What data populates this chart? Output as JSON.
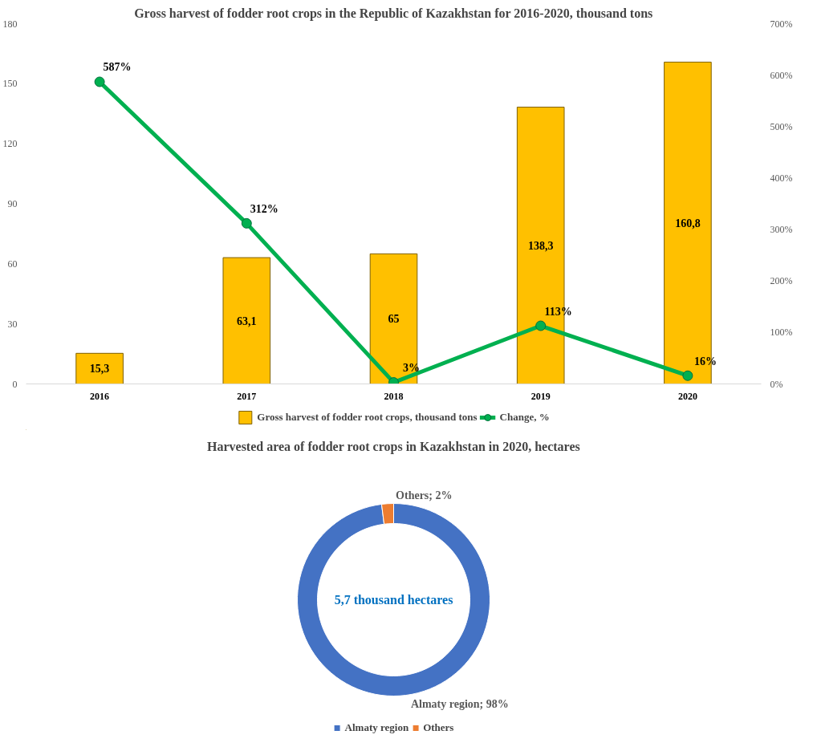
{
  "chart_data": [
    {
      "type": "bar",
      "title": "Gross harvest of fodder root crops in the Republic of Kazakhstan for 2016-2020, thousand tons",
      "categories": [
        "2016",
        "2017",
        "2018",
        "2019",
        "2020"
      ],
      "series": [
        {
          "type": "bar",
          "name": "Gross harvest of fodder root crops, thousand tons",
          "color": "#ffc000",
          "values": [
            15.3,
            63.1,
            65,
            138.3,
            160.8
          ],
          "value_labels": [
            "15,3",
            "63,1",
            "65",
            "138,3",
            "160,8"
          ]
        },
        {
          "type": "line",
          "name": "Change, %",
          "color": "#00b050",
          "axis": "y2",
          "marker": "circle",
          "values": [
            587,
            312,
            3,
            113,
            16
          ],
          "value_labels": [
            "587%",
            "312%",
            "3%",
            "113%",
            "16%"
          ]
        }
      ],
      "ylim": [
        0,
        180
      ],
      "yticks": [
        0,
        30,
        60,
        90,
        120,
        150,
        180
      ],
      "y2lim": [
        0,
        700
      ],
      "y2ticks": [
        {
          "value": 0,
          "label": "0%"
        },
        {
          "value": 100,
          "label": "100%"
        },
        {
          "value": 200,
          "label": "200%"
        },
        {
          "value": 300,
          "label": "300%"
        },
        {
          "value": 400,
          "label": "400%"
        },
        {
          "value": 500,
          "label": "500%"
        },
        {
          "value": 600,
          "label": "600%"
        },
        {
          "value": 700,
          "label": "700%"
        }
      ],
      "legend": "bottom",
      "grid": false
    },
    {
      "type": "donut",
      "title": "Harvested area of fodder root crops in Kazakhstan in 2020, hectares",
      "categories": [
        "Almaty region",
        "Others"
      ],
      "values": [
        98,
        2
      ],
      "colors": [
        "#4472c4",
        "#ed7d31"
      ],
      "value_labels": [
        "Almaty region; 98%",
        "Others; 2%"
      ],
      "annotations": [
        "5,7 thousand hectares"
      ],
      "legend": "bottom"
    }
  ]
}
